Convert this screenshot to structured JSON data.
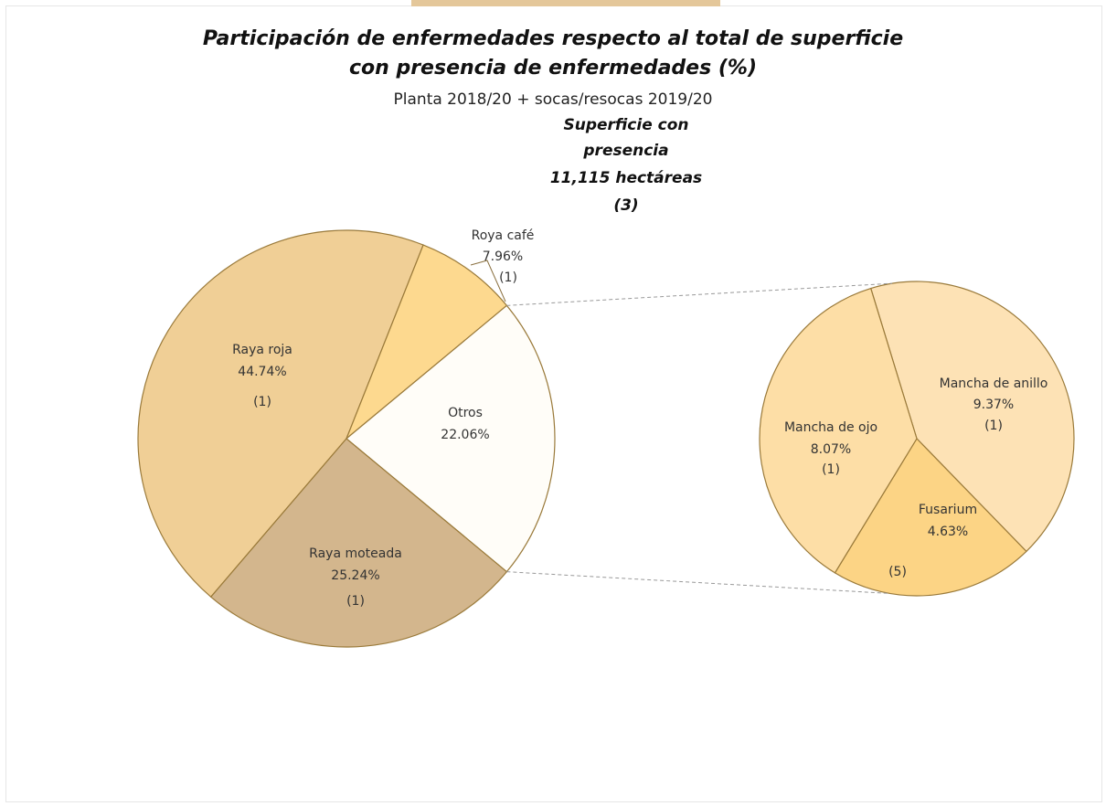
{
  "header": {
    "title_line1": "Participación de enfermedades respecto al total de superficie",
    "title_line2": "con presencia de enfermedades (%)",
    "subtitle": "Planta 2018/20 + socas/resocas 2019/20",
    "superficie": [
      "Superficie con",
      "presencia",
      "11,115 hectáreas",
      "(3)"
    ]
  },
  "chart_data": {
    "type": "pie",
    "subtype": "pie-of-pie",
    "title": "Participación de enfermedades respecto al total de superficie con presencia de enfermedades (%)",
    "subtitle": "Planta 2018/20 + socas/resocas 2019/20",
    "main_pie": {
      "slices": [
        {
          "label": "Raya roja",
          "value": 44.74,
          "value_label": "44.74%",
          "note": "(1)",
          "color": "#f0cf96"
        },
        {
          "label": "Roya café",
          "value": 7.96,
          "value_label": "7.96%",
          "note": "(1)",
          "color": "#fdd98f"
        },
        {
          "label": "Otros",
          "value": 22.06,
          "value_label": "22.06%",
          "note": "",
          "color": "#fffdf8"
        },
        {
          "label": "Raya moteada",
          "value": 25.24,
          "value_label": "25.24%",
          "note": "(1)",
          "color": "#d3b68d"
        }
      ]
    },
    "secondary_pie": {
      "source": "Otros",
      "slices": [
        {
          "label": "Mancha de anillo",
          "value": 9.37,
          "value_label": "9.37%",
          "note": "(1)",
          "color": "#fde2b5"
        },
        {
          "label": "Fusarium",
          "value": 4.63,
          "value_label": "4.63%",
          "note": "(5)",
          "color": "#fcd485"
        },
        {
          "label": "Mancha de ojo",
          "value": 8.07,
          "value_label": "8.07%",
          "note": "(1)",
          "color": "#fddea6"
        }
      ]
    },
    "edge_color": "#9a7a3a"
  }
}
